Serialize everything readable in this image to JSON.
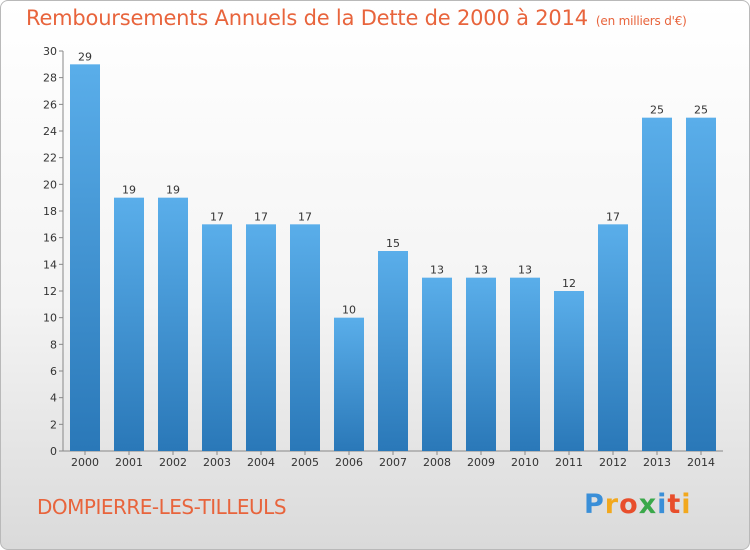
{
  "header": {
    "title": "Remboursements Annuels de la Dette de 2000 à 2014",
    "unit": "(en milliers d'€)"
  },
  "footer": {
    "place": "DOMPIERRE-LES-TILLEULS",
    "logo_letters": [
      "P",
      "r",
      "o",
      "x",
      "i",
      "t",
      "i"
    ],
    "logo_colors": [
      "#3a8fd8",
      "#f2a81d",
      "#e84e2c",
      "#3aa84a",
      "#3a8fd8",
      "#e84e2c",
      "#f2a81d"
    ]
  },
  "chart_data": {
    "type": "bar",
    "categories": [
      "2000",
      "2001",
      "2002",
      "2003",
      "2004",
      "2005",
      "2006",
      "2007",
      "2008",
      "2009",
      "2010",
      "2011",
      "2012",
      "2013",
      "2014"
    ],
    "values": [
      29,
      19,
      19,
      17,
      17,
      17,
      10,
      15,
      13,
      13,
      13,
      12,
      17,
      25,
      25
    ],
    "ylim": [
      0,
      30
    ],
    "yticks": [
      0,
      2,
      4,
      6,
      8,
      10,
      12,
      14,
      16,
      18,
      20,
      22,
      24,
      26,
      28,
      30
    ],
    "grid": false,
    "bar_color_top": "#5aaeea",
    "bar_color_bottom": "#2a78b8",
    "label_color": "#333333"
  }
}
